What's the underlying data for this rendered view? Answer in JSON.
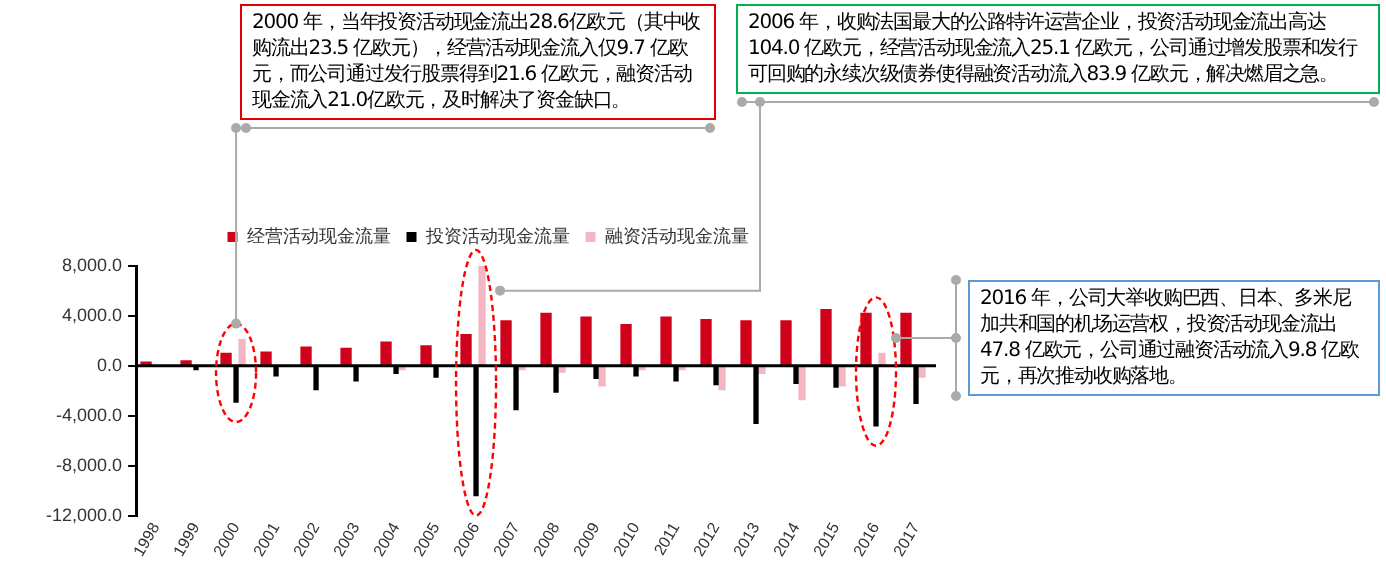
{
  "chart_data": {
    "type": "bar",
    "categories": [
      "1998",
      "1999",
      "2000",
      "2001",
      "2002",
      "2003",
      "2004",
      "2005",
      "2006",
      "2007",
      "2008",
      "2009",
      "2010",
      "2011",
      "2012",
      "2013",
      "2014",
      "2015",
      "2016",
      "2017"
    ],
    "series": [
      {
        "name": "经营活动现金流量",
        "color": "#d0021b",
        "values": [
          300,
          400,
          1000,
          1100,
          1500,
          1400,
          1900,
          1600,
          2500,
          3600,
          4200,
          3900,
          3300,
          3900,
          3700,
          3600,
          3600,
          4500,
          4200,
          4200
        ]
      },
      {
        "name": "投资活动现金流量",
        "color": "#000000",
        "values": [
          null,
          -300,
          -2900,
          -800,
          -1900,
          -1200,
          -600,
          -900,
          -10400,
          -3500,
          -2100,
          -1000,
          -800,
          -1200,
          -1500,
          -4600,
          -1400,
          -1700,
          -4800,
          -3000
        ]
      },
      {
        "name": "融资活动现金流量",
        "color": "#f4b6c2",
        "values": [
          0,
          0,
          2100,
          0,
          0,
          0,
          -300,
          0,
          8000,
          -300,
          -500,
          -1600,
          -300,
          -300,
          -1900,
          -600,
          -2700,
          -1600,
          1000,
          -900
        ]
      }
    ],
    "ylim": [
      -12000,
      8000
    ],
    "yticks": [
      {
        "value": -12000,
        "label": "-12,000.0"
      },
      {
        "value": -8000,
        "label": "-8,000.0"
      },
      {
        "value": -4000,
        "label": "-4,000.0"
      },
      {
        "value": 0,
        "label": "0.0"
      },
      {
        "value": 4000,
        "label": "4,000.0"
      },
      {
        "value": 8000,
        "label": "8,000.0"
      }
    ],
    "grid": false,
    "legend": "top",
    "annotations": [
      "2000 年，当年投资活动现金流出28.6亿欧元（其中收购流出23.5 亿欧元），经营活动现金流入仅9.7 亿欧元，而公司通过发行股票得到21.6 亿欧元，融资活动现金流入21.0亿欧元，及时解决了资金缺口。",
      "2006 年，收购法国最大的公路特许运营企业，投资活动现金流出高达104.0 亿欧元，经营活动现金流入25.1 亿欧元，公司通过增发股票和发行可回购的永续次级债券使得融资活动流入83.9 亿欧元，解决燃眉之急。",
      "2016 年，公司大举收购巴西、日本、多米尼加共和国的机场运营权，投资活动现金流出47.8 亿欧元，公司通过融资活动流入9.8 亿欧元，再次推动收购落地。"
    ]
  }
}
